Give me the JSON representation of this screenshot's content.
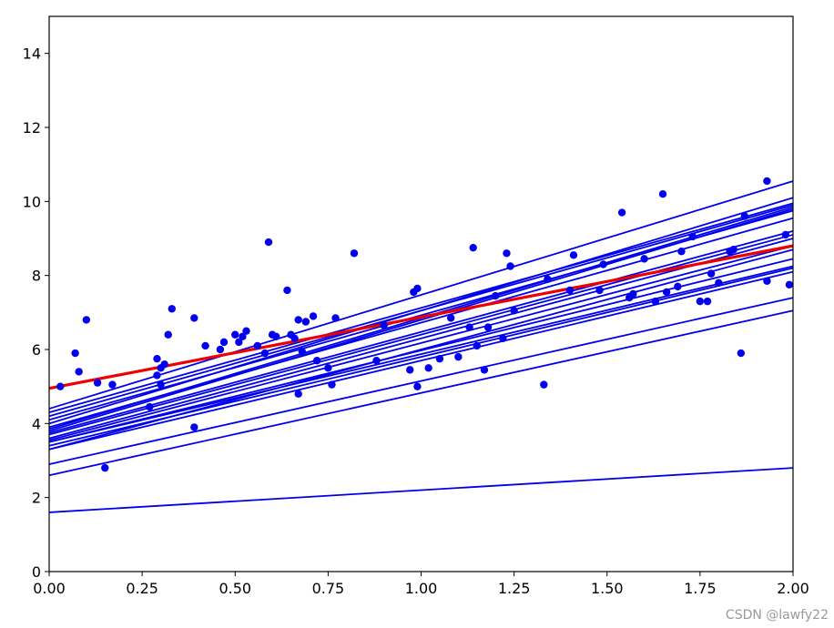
{
  "chart_data": {
    "type": "scatter",
    "title": "",
    "xlabel": "",
    "ylabel": "",
    "xlim": [
      0,
      2
    ],
    "ylim": [
      0,
      15
    ],
    "x_ticks": [
      0,
      0.25,
      0.5,
      0.75,
      1.0,
      1.25,
      1.5,
      1.75,
      2.0
    ],
    "x_tick_labels": [
      "0.00",
      "0.25",
      "0.50",
      "0.75",
      "1.00",
      "1.25",
      "1.50",
      "1.75",
      "2.00"
    ],
    "y_ticks": [
      0,
      2,
      4,
      6,
      8,
      10,
      12,
      14
    ],
    "y_tick_labels": [
      "0",
      "2",
      "4",
      "6",
      "8",
      "10",
      "12",
      "14"
    ],
    "grid": false,
    "points_color": "#0000ee",
    "points": [
      [
        0.03,
        5.0
      ],
      [
        0.07,
        5.9
      ],
      [
        0.08,
        5.4
      ],
      [
        0.1,
        6.8
      ],
      [
        0.13,
        5.1
      ],
      [
        0.15,
        2.8
      ],
      [
        0.17,
        5.05
      ],
      [
        0.27,
        4.45
      ],
      [
        0.29,
        5.75
      ],
      [
        0.29,
        5.3
      ],
      [
        0.3,
        5.5
      ],
      [
        0.3,
        5.05
      ],
      [
        0.31,
        5.6
      ],
      [
        0.32,
        6.4
      ],
      [
        0.33,
        7.1
      ],
      [
        0.39,
        6.85
      ],
      [
        0.39,
        3.9
      ],
      [
        0.42,
        6.1
      ],
      [
        0.46,
        6.0
      ],
      [
        0.47,
        6.2
      ],
      [
        0.5,
        6.4
      ],
      [
        0.51,
        6.2
      ],
      [
        0.52,
        6.35
      ],
      [
        0.53,
        6.5
      ],
      [
        0.56,
        6.1
      ],
      [
        0.58,
        5.9
      ],
      [
        0.59,
        8.9
      ],
      [
        0.6,
        6.4
      ],
      [
        0.61,
        6.35
      ],
      [
        0.64,
        7.6
      ],
      [
        0.65,
        6.4
      ],
      [
        0.66,
        6.3
      ],
      [
        0.67,
        6.8
      ],
      [
        0.67,
        4.8
      ],
      [
        0.68,
        5.95
      ],
      [
        0.69,
        6.75
      ],
      [
        0.71,
        6.9
      ],
      [
        0.72,
        5.7
      ],
      [
        0.75,
        5.5
      ],
      [
        0.76,
        5.05
      ],
      [
        0.77,
        6.85
      ],
      [
        0.82,
        8.6
      ],
      [
        0.88,
        5.7
      ],
      [
        0.9,
        6.65
      ],
      [
        0.97,
        5.45
      ],
      [
        0.98,
        7.55
      ],
      [
        0.99,
        7.65
      ],
      [
        0.99,
        5.0
      ],
      [
        1.02,
        5.5
      ],
      [
        1.05,
        5.75
      ],
      [
        1.08,
        6.85
      ],
      [
        1.1,
        5.8
      ],
      [
        1.13,
        6.6
      ],
      [
        1.14,
        8.75
      ],
      [
        1.15,
        6.1
      ],
      [
        1.17,
        5.45
      ],
      [
        1.18,
        6.6
      ],
      [
        1.2,
        7.45
      ],
      [
        1.22,
        6.3
      ],
      [
        1.23,
        8.6
      ],
      [
        1.24,
        8.25
      ],
      [
        1.25,
        7.05
      ],
      [
        1.33,
        5.05
      ],
      [
        1.34,
        7.9
      ],
      [
        1.4,
        7.6
      ],
      [
        1.41,
        8.55
      ],
      [
        1.48,
        7.6
      ],
      [
        1.49,
        8.3
      ],
      [
        1.54,
        9.7
      ],
      [
        1.56,
        7.4
      ],
      [
        1.57,
        7.5
      ],
      [
        1.6,
        8.45
      ],
      [
        1.63,
        7.3
      ],
      [
        1.65,
        10.2
      ],
      [
        1.66,
        7.55
      ],
      [
        1.69,
        7.7
      ],
      [
        1.7,
        8.65
      ],
      [
        1.73,
        9.05
      ],
      [
        1.75,
        7.3
      ],
      [
        1.77,
        7.3
      ],
      [
        1.78,
        8.05
      ],
      [
        1.8,
        7.8
      ],
      [
        1.83,
        8.65
      ],
      [
        1.84,
        8.7
      ],
      [
        1.86,
        5.9
      ],
      [
        1.87,
        9.6
      ],
      [
        1.93,
        10.55
      ],
      [
        1.93,
        7.85
      ],
      [
        1.98,
        9.1
      ],
      [
        1.99,
        7.75
      ]
    ],
    "fitted_lines_color": "#0000ee",
    "fitted_lines": [
      [
        1.6,
        2.8
      ],
      [
        2.6,
        7.05
      ],
      [
        2.9,
        7.4
      ],
      [
        3.3,
        8.1
      ],
      [
        3.4,
        8.2
      ],
      [
        3.5,
        8.25
      ],
      [
        3.5,
        8.45
      ],
      [
        3.55,
        8.8
      ],
      [
        3.6,
        9.0
      ],
      [
        3.7,
        9.1
      ],
      [
        3.75,
        9.2
      ],
      [
        3.8,
        9.8
      ],
      [
        3.85,
        9.85
      ],
      [
        3.9,
        9.55
      ],
      [
        4.0,
        10.1
      ],
      [
        4.1,
        9.75
      ],
      [
        4.2,
        9.9
      ],
      [
        4.3,
        9.95
      ],
      [
        4.4,
        10.55
      ],
      [
        3.3,
        8.7
      ]
    ],
    "best_fit_color": "#ee0000",
    "best_fit": [
      4.95,
      8.8
    ]
  },
  "watermark": "CSDN @lawfy22"
}
